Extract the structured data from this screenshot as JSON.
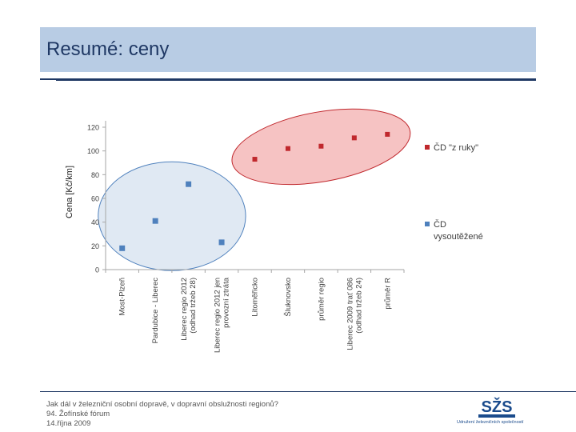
{
  "slide": {
    "title": "Resumé: ceny"
  },
  "chart_data": {
    "type": "scatter",
    "title": "",
    "xlabel": "",
    "ylabel": "Cena [Kč/km]",
    "ylim": [
      0,
      120
    ],
    "yticks": [
      0,
      20,
      40,
      60,
      80,
      100,
      120
    ],
    "grid": false,
    "legend_position": "right",
    "categories": [
      "Most-Plzeň",
      "Pardubice - Liberec",
      "Liberec regio 2012 (odhad tržeb 28)",
      "Liberec regio 2012 jen provozní ztráta",
      "Litoměřicko",
      "Šluknovsko",
      "průměr regio",
      "Liberec 2009 trať 086 (odhad tržeb 24)",
      "průměr R"
    ],
    "category_lines": [
      [
        "Most-Plzeň"
      ],
      [
        "Pardubice - Liberec"
      ],
      [
        "Liberec regio 2012",
        "(odhad tržeb 28)"
      ],
      [
        "Liberec regio 2012 jen",
        "provozní ztráta"
      ],
      [
        "Litoměřicko"
      ],
      [
        "Šluknovsko"
      ],
      [
        "průměr regio"
      ],
      [
        "Liberec 2009 trať 086",
        "(odhad tržeb 24)"
      ],
      [
        "průměr R"
      ]
    ],
    "series": [
      {
        "name": "ČD \"z ruky\"",
        "legend_lines": [
          "ČD \"z ruky\""
        ],
        "color": "#c0282d",
        "ellipse_fill": "#f4b9b9",
        "ellipse_stroke": "#c0282d",
        "points": [
          {
            "category": "Litoměřicko",
            "value": 93
          },
          {
            "category": "Šluknovsko",
            "value": 102
          },
          {
            "category": "průměr regio",
            "value": 104
          },
          {
            "category": "Liberec 2009 trať 086 (odhad tržeb 24)",
            "value": 111
          },
          {
            "category": "průměr R",
            "value": 114
          }
        ]
      },
      {
        "name": "ČD vysoutěžené",
        "legend_lines": [
          "ČD",
          "vysoutěžené"
        ],
        "color": "#4f81bd",
        "ellipse_fill": "#dbe5f1",
        "ellipse_stroke": "#4f81bd",
        "points": [
          {
            "category": "Most-Plzeň",
            "value": 18
          },
          {
            "category": "Pardubice - Liberec",
            "value": 41
          },
          {
            "category": "Liberec regio 2012 (odhad tržeb 28)",
            "value": 72
          },
          {
            "category": "Liberec regio 2012 jen provozní ztráta",
            "value": 23
          }
        ]
      }
    ]
  },
  "footer": {
    "line1": "Jak dál v železniční osobní dopravě, v dopravní obslužnosti regionů?",
    "line2": "94. Žofínské fórum",
    "line3": "14.října 2009"
  },
  "logo": {
    "text": "SŽS",
    "caption": "Udružení železničních společností",
    "color": "#1a4b8c"
  }
}
